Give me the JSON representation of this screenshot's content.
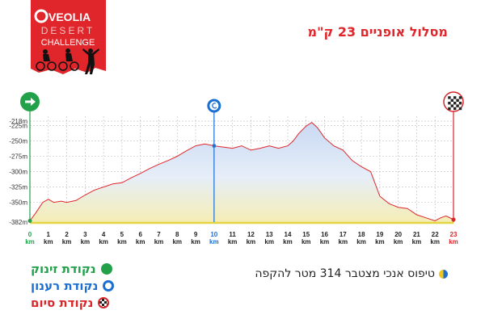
{
  "brand": {
    "name": "VEOLIA",
    "line1": "DESERT",
    "line2": "CHALLENGE"
  },
  "title": "מסלול אופניים 23 ק\"מ",
  "legend": [
    {
      "label": "נקודת זינוק",
      "color": "#22a14a"
    },
    {
      "label": "נקודת רענון",
      "color": "#1b6fd1"
    },
    {
      "label": "נקודת סיום",
      "color": "#d8262b"
    }
  ],
  "note": "טיפוס אנכי מצטבר 314 מטר להקפה",
  "colors": {
    "line": "#e0262b",
    "fill_top": "#c9d9f3",
    "fill_bottom": "#f5edb5",
    "base": "#e2d540",
    "start": "#22a14a",
    "refresh": "#1b6fd1",
    "finish": "#d8262b"
  },
  "chart_data": {
    "type": "area",
    "x_unit": "km",
    "x_ticks": [
      0,
      1,
      2,
      3,
      4,
      5,
      6,
      7,
      8,
      9,
      10,
      11,
      12,
      13,
      14,
      15,
      16,
      17,
      18,
      19,
      20,
      21,
      22,
      23
    ],
    "y_ticks": [
      -218,
      -225,
      -250,
      -275,
      -300,
      -325,
      -350,
      -382
    ],
    "y_unit": "m",
    "xlim": [
      0,
      23
    ],
    "ylim": [
      -382,
      -210
    ],
    "grid": true,
    "markers": [
      {
        "type": "start",
        "km": 0,
        "icon": "arrow-right-icon"
      },
      {
        "type": "refresh",
        "km": 10,
        "icon": "refresh-icon"
      },
      {
        "type": "finish",
        "km": 23,
        "icon": "checkered-flag-icon"
      }
    ],
    "series": [
      {
        "x": [
          0,
          0.3,
          0.7,
          1,
          1.3,
          1.7,
          2,
          2.5,
          3,
          3.5,
          4,
          4.5,
          5,
          5.5,
          6,
          6.5,
          7,
          7.5,
          8,
          8.5,
          9,
          9.5,
          10,
          10.5,
          11,
          11.5,
          12,
          12.5,
          13,
          13.5,
          14,
          14.3,
          14.6,
          15,
          15.3,
          15.6,
          16,
          16.5,
          17,
          17.5,
          18,
          18.5,
          19,
          19.5,
          20,
          20.5,
          21,
          21.5,
          22,
          22.3,
          22.6,
          23
        ],
        "y": [
          -380,
          -368,
          -350,
          -345,
          -350,
          -348,
          -350,
          -347,
          -338,
          -330,
          -325,
          -320,
          -318,
          -310,
          -303,
          -295,
          -288,
          -282,
          -275,
          -266,
          -258,
          -255,
          -258,
          -260,
          -262,
          -258,
          -265,
          -262,
          -258,
          -262,
          -258,
          -250,
          -238,
          -226,
          -220,
          -228,
          -245,
          -258,
          -265,
          -282,
          -292,
          -300,
          -340,
          -352,
          -358,
          -360,
          -370,
          -375,
          -380,
          -375,
          -372,
          -378
        ]
      }
    ]
  }
}
